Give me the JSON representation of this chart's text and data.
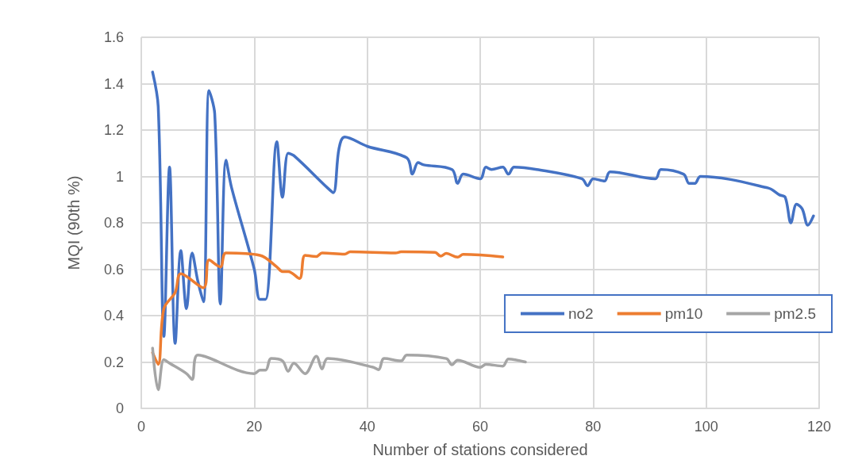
{
  "chart_data": {
    "type": "line",
    "xlabel": "Number of stations considered",
    "ylabel": "MQI (90th %)",
    "xlim": [
      0,
      120
    ],
    "xticks": [
      0,
      20,
      40,
      60,
      80,
      100,
      120
    ],
    "ylim": [
      0,
      1.6
    ],
    "yticks": [
      0,
      0.2,
      0.4,
      0.6,
      0.8,
      1,
      1.2,
      1.4,
      1.6
    ],
    "grid": true,
    "legend": "right",
    "marker": "none",
    "line_style": "solid",
    "series": [
      {
        "name": "no2",
        "color": "#4472c4",
        "x": [
          2,
          3,
          4,
          5,
          6,
          7,
          8,
          9,
          10,
          11,
          12,
          13,
          14,
          15,
          16,
          20,
          21,
          22,
          24,
          25,
          26,
          27,
          33,
          34,
          35,
          36,
          40,
          47,
          48,
          49,
          50,
          55,
          56,
          57,
          60,
          61,
          62,
          64,
          65,
          66,
          70,
          78,
          79,
          80,
          82,
          83,
          91,
          92,
          96,
          97,
          98,
          99,
          111,
          113,
          114,
          115,
          116,
          117,
          118,
          119
        ],
        "values": [
          1.45,
          1.3,
          0.31,
          1.04,
          0.28,
          0.68,
          0.43,
          0.67,
          0.55,
          0.46,
          1.37,
          1.27,
          0.45,
          1.07,
          0.95,
          0.6,
          0.47,
          0.47,
          1.15,
          0.91,
          1.1,
          1.09,
          0.95,
          0.93,
          1.12,
          1.17,
          1.13,
          1.08,
          1.01,
          1.06,
          1.05,
          1.03,
          0.97,
          1.01,
          0.99,
          1.04,
          1.03,
          1.04,
          1.01,
          1.04,
          1.03,
          0.99,
          0.96,
          0.99,
          0.98,
          1.02,
          0.99,
          1.03,
          1.01,
          0.97,
          0.97,
          1,
          0.95,
          0.92,
          0.91,
          0.8,
          0.88,
          0.86,
          0.79,
          0.83
        ]
      },
      {
        "name": "pm10",
        "color": "#ed7d31",
        "x": [
          2,
          3,
          4,
          6,
          7,
          11,
          12,
          14,
          15,
          21,
          24,
          25,
          26,
          28,
          29,
          31,
          32,
          36,
          37,
          45,
          46,
          52,
          53,
          54,
          56,
          57,
          64
        ],
        "values": [
          0.24,
          0.19,
          0.43,
          0.5,
          0.58,
          0.52,
          0.64,
          0.61,
          0.67,
          0.66,
          0.61,
          0.59,
          0.59,
          0.56,
          0.66,
          0.655,
          0.67,
          0.665,
          0.675,
          0.67,
          0.675,
          0.673,
          0.656,
          0.668,
          0.652,
          0.664,
          0.653
        ]
      },
      {
        "name": "pm2.5",
        "color": "#a5a5a5",
        "x": [
          2,
          3,
          4,
          5,
          8,
          9,
          10,
          20,
          21,
          22,
          23,
          25,
          26,
          27,
          29,
          31,
          32,
          33,
          41,
          42,
          43,
          46,
          47,
          54,
          55,
          56,
          60,
          61,
          64,
          65,
          68
        ],
        "values": [
          0.26,
          0.08,
          0.21,
          0.195,
          0.15,
          0.125,
          0.23,
          0.15,
          0.165,
          0.165,
          0.215,
          0.205,
          0.16,
          0.195,
          0.15,
          0.225,
          0.17,
          0.215,
          0.178,
          0.167,
          0.215,
          0.205,
          0.23,
          0.215,
          0.188,
          0.208,
          0.177,
          0.19,
          0.182,
          0.213,
          0.2
        ]
      }
    ]
  }
}
